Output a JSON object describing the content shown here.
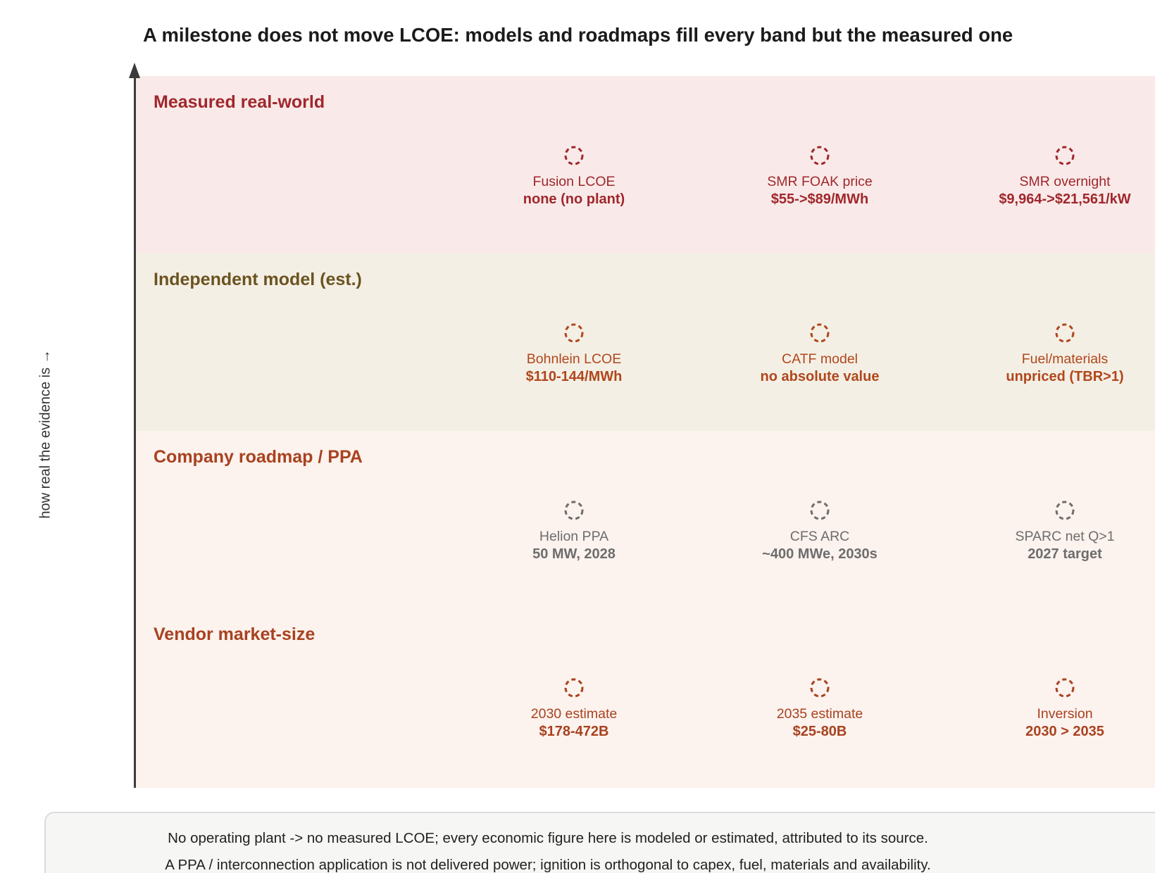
{
  "title": "A milestone does not move LCOE: models and roadmaps fill every band but the measured one",
  "y_axis_label": "how real the evidence is →",
  "bands": [
    {
      "label": "Measured real-world",
      "background": "#f9eae9",
      "label_color": "#a0272c",
      "item_color": "#a0272c",
      "items": [
        {
          "label": "Fusion LCOE",
          "value": "none (no plant)"
        },
        {
          "label": "SMR FOAK price",
          "value": "$55->$89/MWh"
        },
        {
          "label": "SMR overnight",
          "value": "$9,964->$21,561/kW"
        }
      ]
    },
    {
      "label": "Independent model (est.)",
      "background": "#f4efe5",
      "label_color": "#6b5320",
      "item_color": "#b0471c",
      "items": [
        {
          "label": "Bohnlein LCOE",
          "value": "$110-144/MWh"
        },
        {
          "label": "CATF model",
          "value": "no absolute value"
        },
        {
          "label": "Fuel/materials",
          "value": "unpriced (TBR>1)"
        }
      ]
    },
    {
      "label": "Company roadmap / PPA",
      "background": "#fcf2ee",
      "label_color": "#a8421f",
      "item_color": "#6d6d6d",
      "items": [
        {
          "label": "Helion PPA",
          "value": "50 MW, 2028"
        },
        {
          "label": "CFS ARC",
          "value": "~400 MWe, 2030s"
        },
        {
          "label": "SPARC net Q>1",
          "value": "2027 target"
        }
      ]
    },
    {
      "label": "Vendor market-size",
      "background": "#fcf2ee",
      "label_color": "#a8421f",
      "item_color": "#a8421f",
      "items": [
        {
          "label": "2030 estimate",
          "value": "$178-472B"
        },
        {
          "label": "2035 estimate",
          "value": "$25-80B"
        },
        {
          "label": "Inversion",
          "value": "2030 > 2035"
        }
      ]
    }
  ],
  "footer": {
    "lines": [
      "No operating plant -> no measured LCOE; every economic figure here is modeled or estimated, attributed to its source.",
      "A PPA / interconnection application is not delivered power; ignition is orthogonal to capex, fuel, materials and availability."
    ]
  }
}
